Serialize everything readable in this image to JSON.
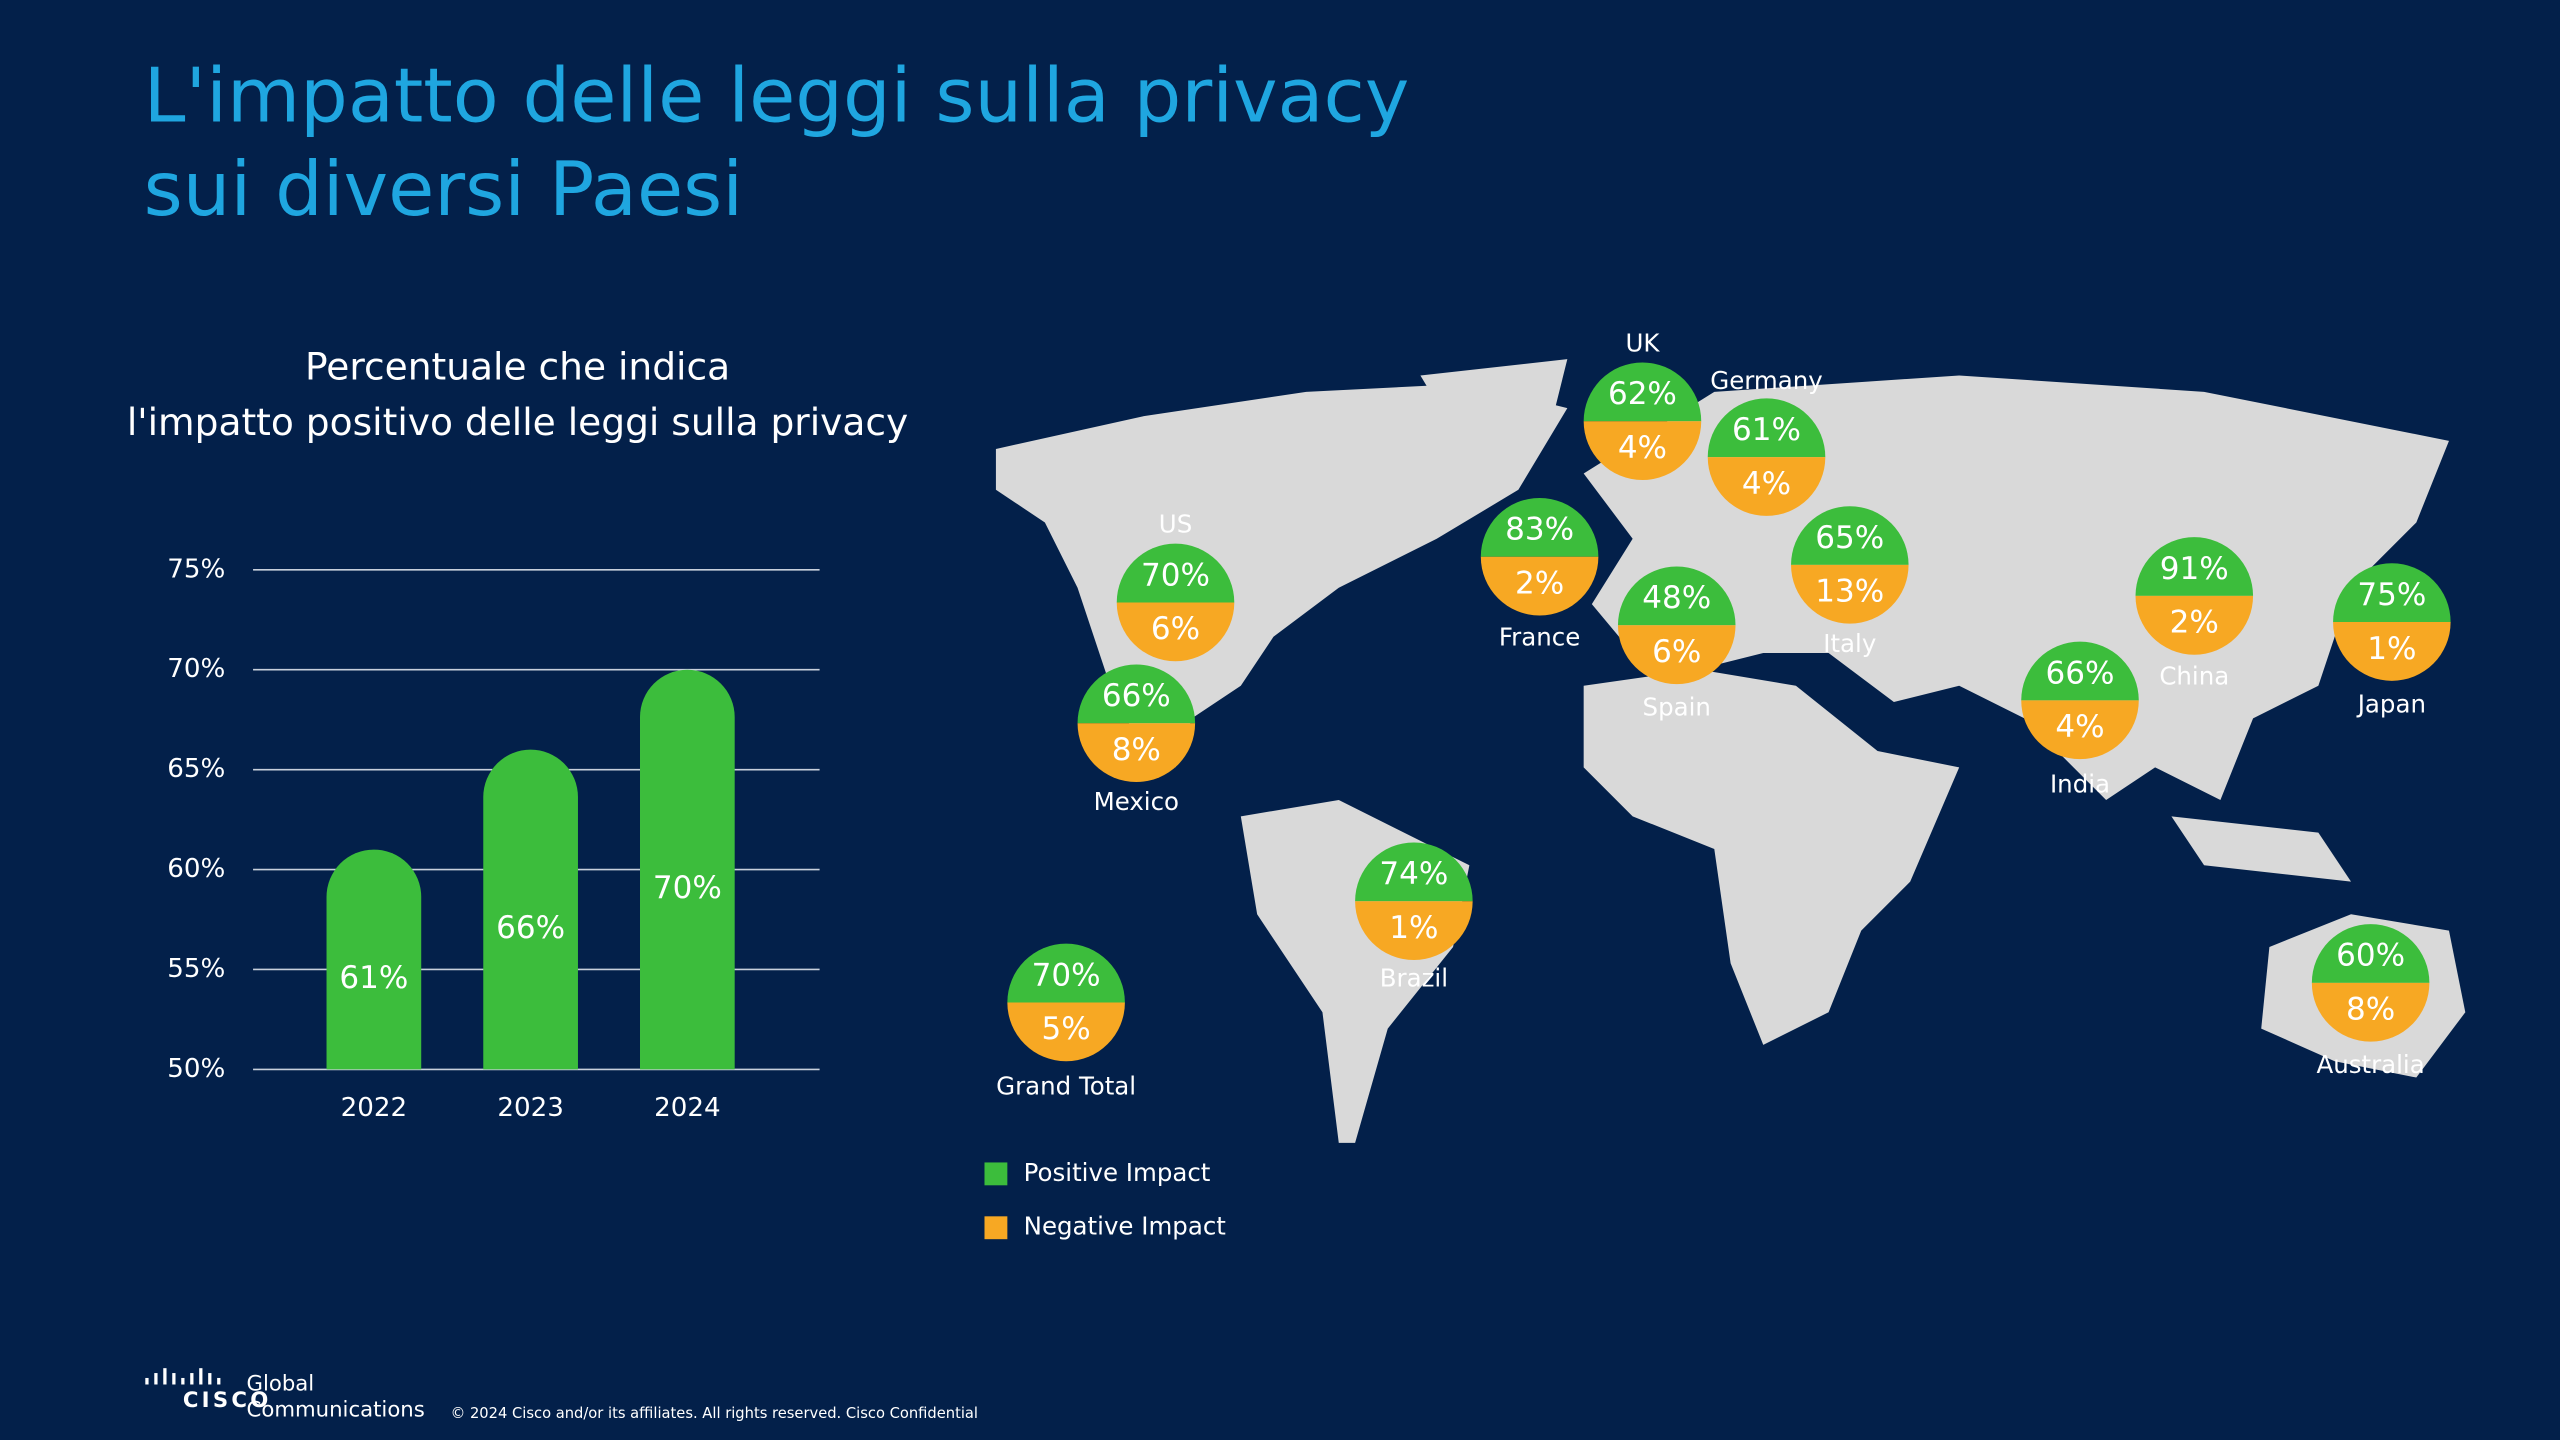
{
  "title": [
    "L'impatto delle leggi sulla privacy",
    "sui diversi Paesi"
  ],
  "chart_data": {
    "type": "bar",
    "title": [
      "Percentuale che indica",
      "l'impatto positivo delle leggi sulla privacy"
    ],
    "categories": [
      "2022",
      "2023",
      "2024"
    ],
    "values": [
      61,
      66,
      70
    ],
    "value_labels": [
      "61%",
      "66%",
      "70%"
    ],
    "color": "#3cbd3c",
    "ylim": [
      50,
      75
    ],
    "yticks": [
      {
        "value": 50,
        "label": "50%"
      },
      {
        "value": 55,
        "label": "55%"
      },
      {
        "value": 60,
        "label": "60%"
      },
      {
        "value": 65,
        "label": "65%"
      },
      {
        "value": 70,
        "label": "70%"
      },
      {
        "value": 75,
        "label": "75%"
      }
    ],
    "grid": true
  },
  "map": {
    "regions": [
      {
        "name": "UK",
        "positive": "62%",
        "negative": "4%"
      },
      {
        "name": "Germany",
        "positive": "61%",
        "negative": "4%"
      },
      {
        "name": "France",
        "positive": "83%",
        "negative": "2%"
      },
      {
        "name": "US",
        "positive": "70%",
        "negative": "6%"
      },
      {
        "name": "Spain",
        "positive": "48%",
        "negative": "6%"
      },
      {
        "name": "Italy",
        "positive": "65%",
        "negative": "13%"
      },
      {
        "name": "Mexico",
        "positive": "66%",
        "negative": "8%"
      },
      {
        "name": "China",
        "positive": "91%",
        "negative": "2%"
      },
      {
        "name": "Japan",
        "positive": "75%",
        "negative": "1%"
      },
      {
        "name": "India",
        "positive": "66%",
        "negative": "4%"
      },
      {
        "name": "Brazil",
        "positive": "74%",
        "negative": "1%"
      },
      {
        "name": "Grand Total",
        "positive": "70%",
        "negative": "5%"
      },
      {
        "name": "Australia",
        "positive": "60%",
        "negative": "8%"
      }
    ],
    "legend": [
      {
        "name": "Positive Impact",
        "color": "#3cbd3c"
      },
      {
        "name": "Negative Impact",
        "color": "#f7a823"
      }
    ]
  },
  "footer": {
    "logo": "CISCO",
    "unit": [
      "Global",
      "Communications"
    ],
    "copyright": "© 2024 Cisco and/or its affiliates. All rights reserved. Cisco Confidential"
  }
}
